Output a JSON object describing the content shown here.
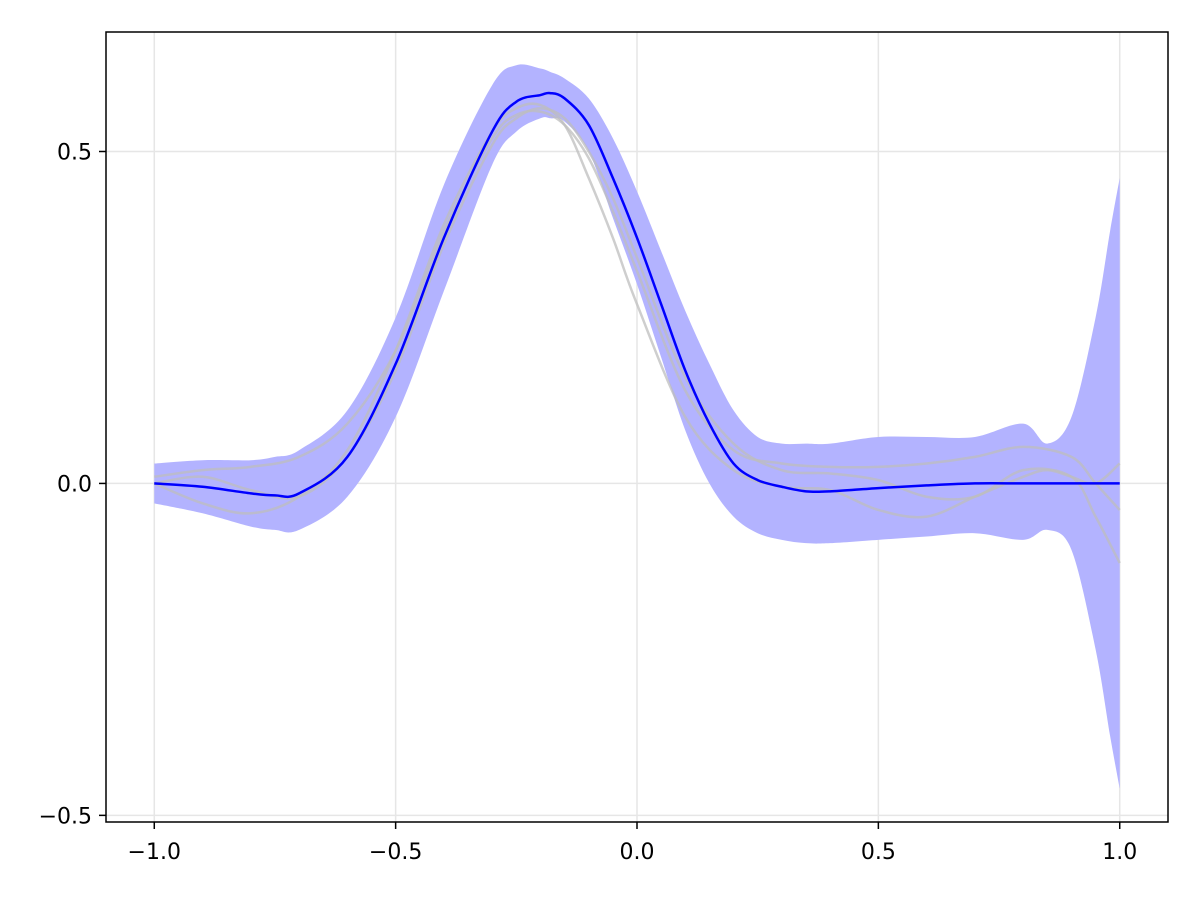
{
  "chart_data": {
    "type": "line",
    "title": "",
    "xlabel": "",
    "ylabel": "",
    "xlim": [
      -1.1,
      1.1
    ],
    "ylim": [
      -0.51,
      0.68
    ],
    "grid": true,
    "legend": "none",
    "x_ticks": [
      -1.0,
      -0.5,
      0.0,
      0.5,
      1.0
    ],
    "x_tick_labels": [
      "−1.0",
      "−0.5",
      "0.0",
      "0.5",
      "1.0"
    ],
    "y_ticks": [
      -0.5,
      0.0,
      0.5
    ],
    "y_tick_labels": [
      "−0.5",
      "0.0",
      "0.5"
    ],
    "colors": {
      "mean": "#0000ff",
      "band": "#b3b3ff",
      "samples": "#bdbdbd",
      "grid": "#e6e6e6",
      "axis": "#000000"
    },
    "series": [
      {
        "role": "mean",
        "x": [
          -1.0,
          -0.9,
          -0.8,
          -0.75,
          -0.7,
          -0.6,
          -0.5,
          -0.4,
          -0.3,
          -0.25,
          -0.2,
          -0.18,
          -0.15,
          -0.1,
          -0.05,
          0.0,
          0.05,
          0.1,
          0.15,
          0.2,
          0.25,
          0.3,
          0.35,
          0.4,
          0.5,
          0.6,
          0.7,
          0.8,
          0.9,
          1.0
        ],
        "y": [
          0.0,
          -0.005,
          -0.015,
          -0.018,
          -0.015,
          0.04,
          0.18,
          0.37,
          0.53,
          0.575,
          0.585,
          0.588,
          0.58,
          0.54,
          0.46,
          0.37,
          0.27,
          0.17,
          0.09,
          0.03,
          0.005,
          -0.005,
          -0.012,
          -0.012,
          -0.007,
          -0.003,
          0.0,
          0.0,
          0.0,
          0.0
        ]
      },
      {
        "role": "band",
        "x": [
          -1.0,
          -0.9,
          -0.8,
          -0.75,
          -0.7,
          -0.6,
          -0.5,
          -0.4,
          -0.3,
          -0.25,
          -0.2,
          -0.18,
          -0.15,
          -0.1,
          -0.05,
          0.0,
          0.05,
          0.1,
          0.15,
          0.2,
          0.25,
          0.3,
          0.35,
          0.4,
          0.5,
          0.6,
          0.7,
          0.8,
          0.85,
          0.9,
          0.95,
          0.98,
          1.0
        ],
        "upper": [
          0.03,
          0.035,
          0.035,
          0.04,
          0.05,
          0.11,
          0.25,
          0.45,
          0.6,
          0.63,
          0.625,
          0.62,
          0.61,
          0.58,
          0.52,
          0.44,
          0.35,
          0.26,
          0.18,
          0.11,
          0.07,
          0.06,
          0.06,
          0.06,
          0.07,
          0.07,
          0.07,
          0.09,
          0.06,
          0.1,
          0.25,
          0.38,
          0.46
        ],
        "lower": [
          -0.03,
          -0.045,
          -0.065,
          -0.07,
          -0.07,
          -0.02,
          0.1,
          0.29,
          0.48,
          0.53,
          0.55,
          0.55,
          0.545,
          0.5,
          0.4,
          0.3,
          0.19,
          0.08,
          0.0,
          -0.05,
          -0.075,
          -0.085,
          -0.09,
          -0.09,
          -0.085,
          -0.08,
          -0.075,
          -0.085,
          -0.07,
          -0.1,
          -0.25,
          -0.38,
          -0.46
        ]
      },
      {
        "role": "sample",
        "x": [
          -1.0,
          -0.9,
          -0.8,
          -0.7,
          -0.6,
          -0.5,
          -0.4,
          -0.3,
          -0.25,
          -0.2,
          -0.15,
          -0.1,
          -0.05,
          0.0,
          0.1,
          0.2,
          0.3,
          0.4,
          0.5,
          0.6,
          0.7,
          0.8,
          0.9,
          0.95,
          1.0
        ],
        "y": [
          0.01,
          0.02,
          0.025,
          0.04,
          0.09,
          0.2,
          0.38,
          0.52,
          0.555,
          0.56,
          0.54,
          0.49,
          0.41,
          0.32,
          0.14,
          0.05,
          0.03,
          0.025,
          0.025,
          0.03,
          0.04,
          0.055,
          0.04,
          0.0,
          -0.04
        ]
      },
      {
        "role": "sample",
        "x": [
          -1.0,
          -0.9,
          -0.8,
          -0.7,
          -0.6,
          -0.5,
          -0.4,
          -0.3,
          -0.25,
          -0.2,
          -0.15,
          -0.1,
          -0.05,
          0.0,
          0.1,
          0.2,
          0.3,
          0.4,
          0.5,
          0.6,
          0.7,
          0.8,
          0.9,
          0.95,
          1.0
        ],
        "y": [
          0.0,
          0.01,
          -0.01,
          -0.02,
          0.04,
          0.17,
          0.36,
          0.51,
          0.55,
          0.565,
          0.55,
          0.5,
          0.43,
          0.34,
          0.16,
          0.06,
          0.02,
          0.015,
          0.005,
          -0.02,
          -0.02,
          0.02,
          0.01,
          -0.05,
          -0.12
        ]
      },
      {
        "role": "sample",
        "x": [
          -1.0,
          -0.9,
          -0.8,
          -0.7,
          -0.6,
          -0.5,
          -0.4,
          -0.3,
          -0.25,
          -0.2,
          -0.15,
          -0.1,
          -0.05,
          0.0,
          0.1,
          0.2,
          0.3,
          0.4,
          0.5,
          0.6,
          0.7,
          0.8,
          0.85,
          0.9,
          0.95,
          1.0
        ],
        "y": [
          0.0,
          -0.03,
          -0.045,
          -0.02,
          0.05,
          0.2,
          0.39,
          0.53,
          0.565,
          0.57,
          0.54,
          0.46,
          0.37,
          0.27,
          0.1,
          0.02,
          -0.005,
          -0.01,
          -0.04,
          -0.05,
          -0.02,
          0.01,
          0.02,
          0.01,
          0.0,
          0.03
        ]
      }
    ]
  }
}
